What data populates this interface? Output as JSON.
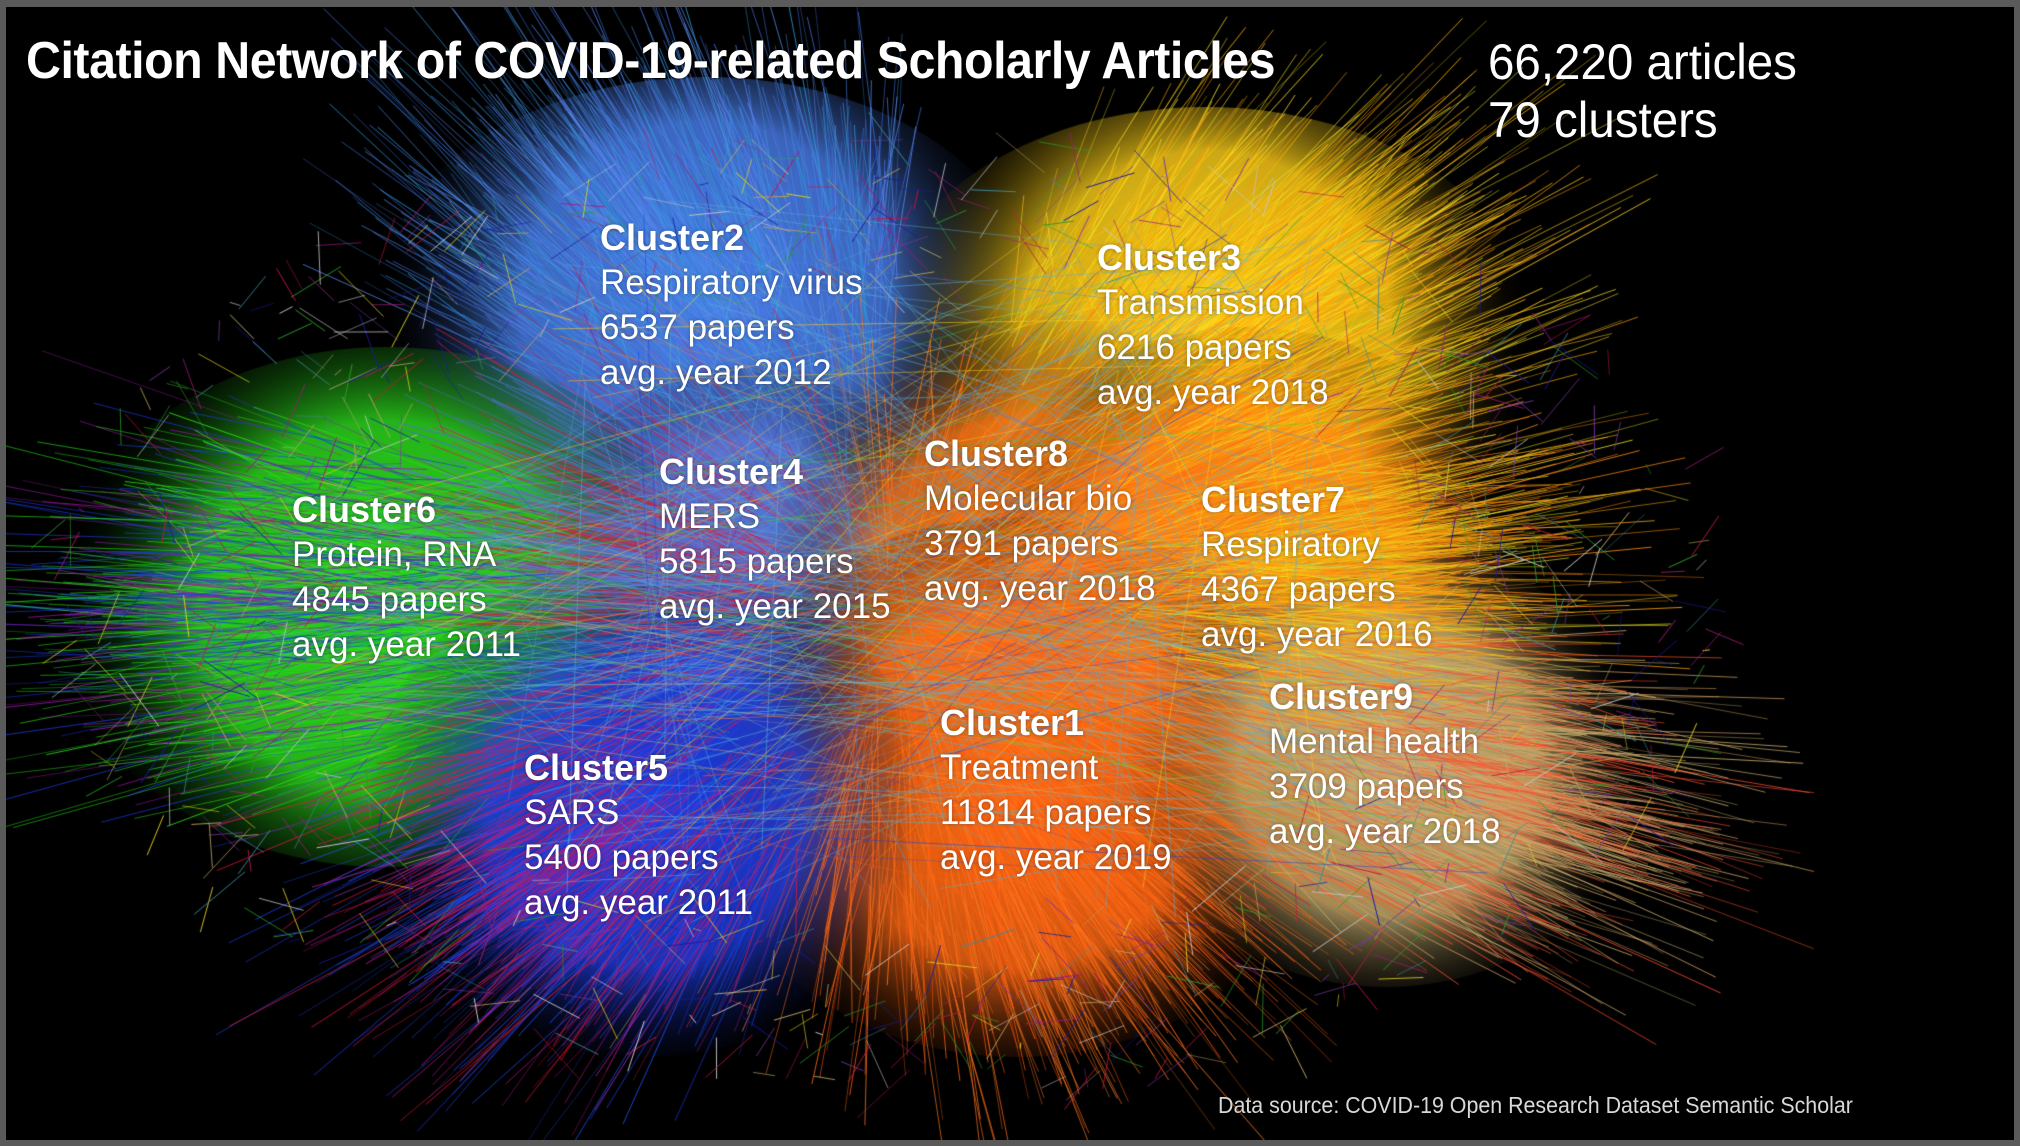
{
  "title": "Citation Network of COVID-19-related Scholarly Articles",
  "stats": {
    "articles": "66,220 articles",
    "clusters": "79 clusters"
  },
  "clusters": [
    {
      "id": "cluster1",
      "name": "Cluster1",
      "topic": "Treatment",
      "papers": "11814 papers",
      "avg_year": "avg. year 2019",
      "color": "#ff6a14"
    },
    {
      "id": "cluster2",
      "name": "Cluster2",
      "topic": "Respiratory virus",
      "papers": "6537 papers",
      "avg_year": "avg. year 2012",
      "color": "#4f7fe0"
    },
    {
      "id": "cluster3",
      "name": "Cluster3",
      "topic": "Transmission",
      "papers": "6216 papers",
      "avg_year": "avg. year 2018",
      "color": "#ffd21a"
    },
    {
      "id": "cluster4",
      "name": "Cluster4",
      "topic": "MERS",
      "papers": "5815 papers",
      "avg_year": "avg. year 2015",
      "color": "#5a78d8"
    },
    {
      "id": "cluster5",
      "name": "Cluster5",
      "topic": "SARS",
      "papers": "5400 papers",
      "avg_year": "avg. year 2011",
      "color": "#1e3ce0"
    },
    {
      "id": "cluster6",
      "name": "Cluster6",
      "topic": "Protein, RNA",
      "papers": "4845 papers",
      "avg_year": "avg. year 2011",
      "color": "#2ee01e"
    },
    {
      "id": "cluster7",
      "name": "Cluster7",
      "topic": "Respiratory",
      "papers": "4367 papers",
      "avg_year": "avg. year 2016",
      "color": "#ff8a10"
    },
    {
      "id": "cluster8",
      "name": "Cluster8",
      "topic": "Molecular bio",
      "papers": "3791 papers",
      "avg_year": "avg. year 2018",
      "color": "#ff7a18"
    },
    {
      "id": "cluster9",
      "name": "Cluster9",
      "topic": "Mental health",
      "papers": "3709 papers",
      "avg_year": "avg. year 2018",
      "color": "#c8b070"
    }
  ],
  "source": "Data source: COVID-19 Open Research Dataset Semantic Scholar",
  "background_color": "#000000"
}
